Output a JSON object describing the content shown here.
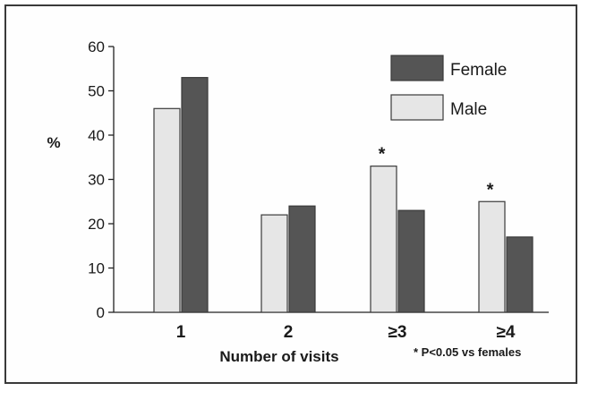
{
  "chart_data": {
    "type": "bar",
    "categories": [
      "1",
      "2",
      "≥3",
      "≥4"
    ],
    "series": [
      {
        "name": "Male",
        "values": [
          46,
          22,
          33,
          25
        ],
        "color": "#e6e6e6"
      },
      {
        "name": "Female",
        "values": [
          53,
          24,
          23,
          17
        ],
        "color": "#555555"
      }
    ],
    "ylabel": "%",
    "xlabel": "Number of visits",
    "ylim": [
      0,
      60
    ],
    "yticks": [
      0,
      10,
      20,
      30,
      40,
      50,
      60
    ],
    "legend": {
      "position": "top-right",
      "items": [
        "Female",
        "Male"
      ]
    },
    "significance": [
      {
        "category": "≥3",
        "series": "Male",
        "mark": "*"
      },
      {
        "category": "≥4",
        "series": "Male",
        "mark": "*"
      }
    ],
    "footnote": "* P<0.05 vs females",
    "grid": false
  }
}
